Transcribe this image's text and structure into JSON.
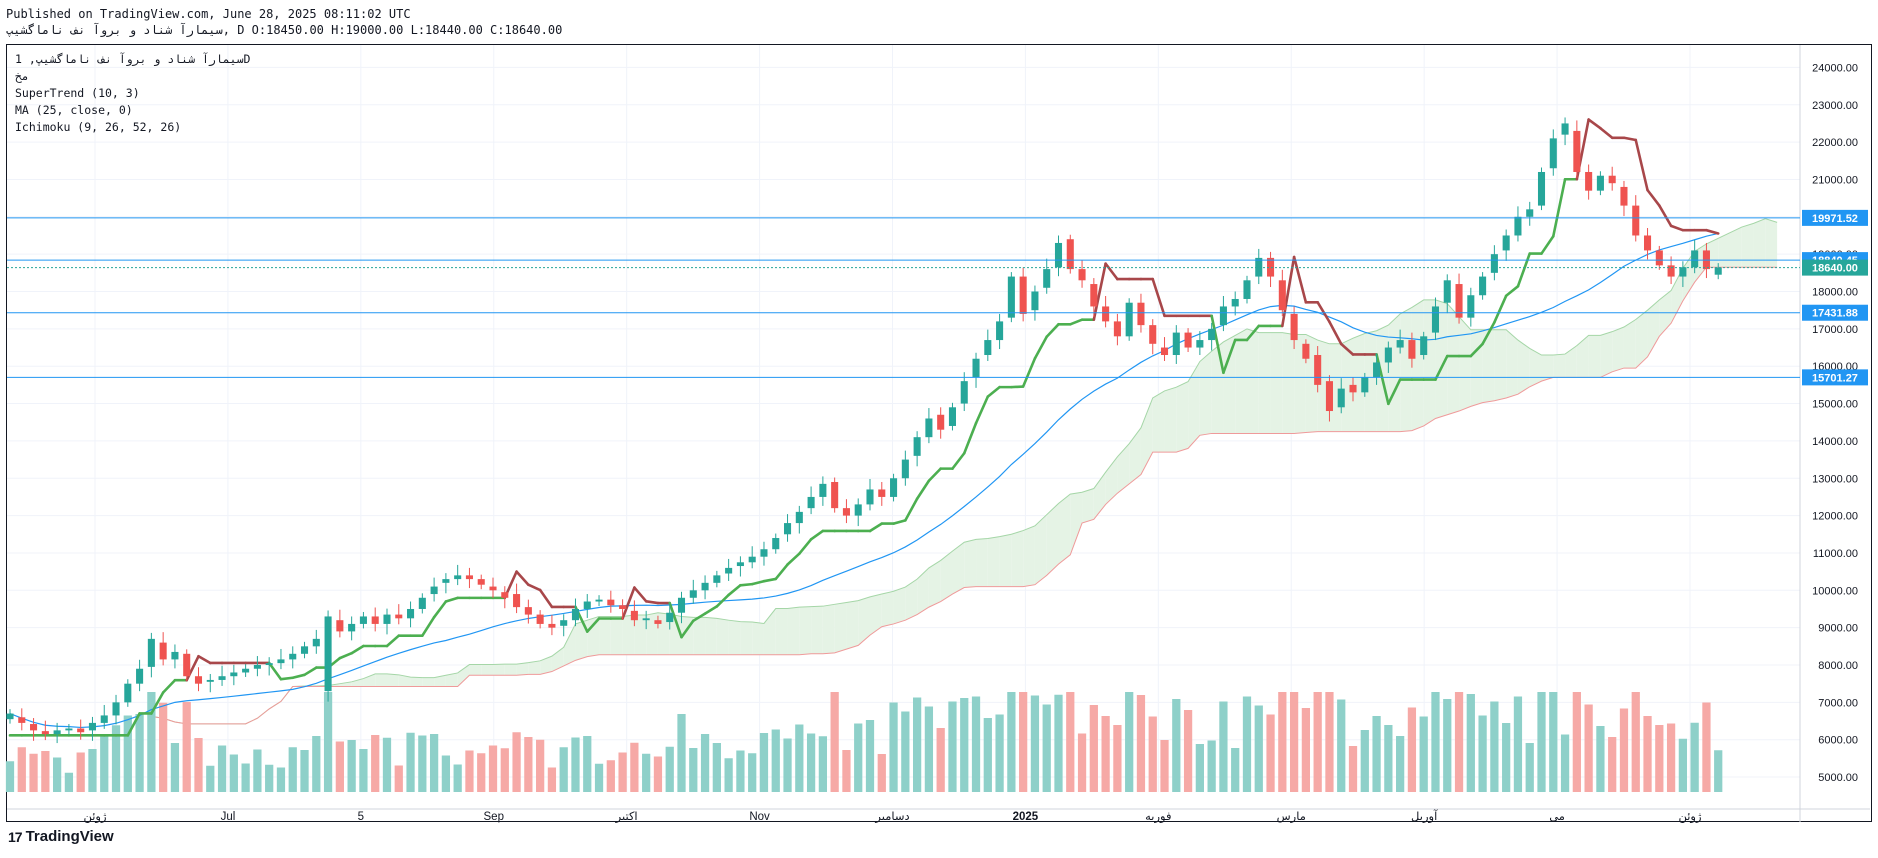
{
  "header": {
    "line1": "Published on TradingView.com, June 28, 2025 08:11:02 UTC",
    "line2": "سیمارآ شناد و بروآ نف ناماگشیپ, D O:18450.00 H:19000.00 L:18440.00 C:18640.00"
  },
  "legend": {
    "symbol": "سیمارآ شناد و بروآ نف ناماگشیپ, 1D",
    "symbol_sub": "مخ",
    "ind1": "SuperTrend (10, 3)",
    "ind2": "MA (25, close, 0)",
    "ind3": "Ichimoku (9, 26, 52, 26)"
  },
  "branding": {
    "logo_text": "TradingView",
    "logo_mark": "17"
  },
  "colors": {
    "up": "#26a69a",
    "down": "#ef5350",
    "vol_up": "#8ed0c9",
    "vol_down": "#f6a9a6",
    "supertrend_up": "#4caf50",
    "supertrend_down": "#a8474a",
    "ma": "#2196f3",
    "hline": "#2196f3",
    "cloud_up": "#e5f3e5",
    "cloud_down": "#fbe3e3",
    "span_a": "#a5d6a7",
    "span_b": "#ef9a9a"
  },
  "chart_data": {
    "type": "candlestick",
    "ylim": [
      4600,
      24600
    ],
    "y_ticks": [
      "5000.00",
      "6000.00",
      "7000.00",
      "8000.00",
      "9000.00",
      "10000.00",
      "11000.00",
      "12000.00",
      "13000.00",
      "14000.00",
      "15000.00",
      "16000.00",
      "17000.00",
      "18000.00",
      "19000.00",
      "20000.00",
      "21000.00",
      "22000.00",
      "23000.00",
      "24000.00"
    ],
    "x_labels": [
      "ژوئن",
      "Jul",
      "5",
      "Sep",
      "اکتبر",
      "Nov",
      "دسامبر",
      "2025",
      "فوریه",
      "مارس",
      "آوریل",
      "می",
      "ژوئن"
    ],
    "horizontal_levels": [
      {
        "value": 19971.52,
        "label": "19971.52",
        "color": "#2196f3"
      },
      {
        "value": 18840.45,
        "label": "18840.45",
        "color": "#2196f3"
      },
      {
        "value": 17431.88,
        "label": "17431.88",
        "color": "#2196f3"
      },
      {
        "value": 15701.27,
        "label": "15701.27",
        "color": "#2196f3"
      },
      {
        "value": 18640.0,
        "label": "18640.00",
        "color": "#26a69a",
        "dotted": true
      }
    ],
    "last_close": 18640.0,
    "price_path": [
      [
        6550,
        6700
      ],
      [
        6600,
        6450
      ],
      [
        6420,
        6250
      ],
      [
        6230,
        6150
      ],
      [
        6150,
        6250
      ],
      [
        6250,
        6300
      ],
      [
        6300,
        6200
      ],
      [
        6250,
        6450
      ],
      [
        6450,
        6650
      ],
      [
        6650,
        7000
      ],
      [
        7000,
        7500
      ],
      [
        7500,
        7900
      ],
      [
        7950,
        8700
      ],
      [
        8600,
        8150
      ],
      [
        8150,
        8350
      ],
      [
        8300,
        7700
      ],
      [
        7700,
        7500
      ],
      [
        7550,
        7600
      ],
      [
        7600,
        7700
      ],
      [
        7700,
        7800
      ],
      [
        7800,
        7900
      ],
      [
        7900,
        8000
      ],
      [
        8000,
        8050
      ],
      [
        8050,
        8150
      ],
      [
        8150,
        8300
      ],
      [
        8300,
        8500
      ],
      [
        8500,
        8700
      ],
      [
        7300,
        9300
      ],
      [
        9200,
        8900
      ],
      [
        8900,
        9100
      ],
      [
        9100,
        9300
      ],
      [
        9300,
        9100
      ],
      [
        9100,
        9350
      ],
      [
        9350,
        9250
      ],
      [
        9250,
        9500
      ],
      [
        9500,
        9800
      ],
      [
        9900,
        10100
      ],
      [
        10200,
        10300
      ],
      [
        10300,
        10400
      ],
      [
        10400,
        10300
      ],
      [
        10300,
        10150
      ],
      [
        10100,
        10000
      ],
      [
        9950,
        9800
      ],
      [
        9900,
        9550
      ],
      [
        9550,
        9350
      ],
      [
        9350,
        9100
      ],
      [
        9100,
        9000
      ],
      [
        9050,
        9200
      ],
      [
        9200,
        9500
      ],
      [
        9500,
        9700
      ],
      [
        9700,
        9750
      ],
      [
        9750,
        9600
      ],
      [
        9600,
        9500
      ],
      [
        9450,
        9200
      ],
      [
        9200,
        9250
      ],
      [
        9200,
        9100
      ],
      [
        9150,
        9400
      ],
      [
        9400,
        9800
      ],
      [
        9800,
        10000
      ],
      [
        10000,
        10200
      ],
      [
        10200,
        10400
      ],
      [
        10450,
        10600
      ],
      [
        10650,
        10750
      ],
      [
        10750,
        10900
      ],
      [
        10900,
        11100
      ],
      [
        11100,
        11400
      ],
      [
        11500,
        11800
      ],
      [
        11800,
        12100
      ],
      [
        12200,
        12500
      ],
      [
        12500,
        12850
      ],
      [
        12900,
        12200
      ],
      [
        12200,
        12000
      ],
      [
        12000,
        12300
      ],
      [
        12300,
        12700
      ],
      [
        12700,
        12500
      ],
      [
        12500,
        13000
      ],
      [
        13000,
        13500
      ],
      [
        13600,
        14100
      ],
      [
        14100,
        14600
      ],
      [
        14700,
        14300
      ],
      [
        14400,
        14900
      ],
      [
        15000,
        15600
      ],
      [
        15700,
        16200
      ],
      [
        16300,
        16700
      ],
      [
        16700,
        17200
      ],
      [
        17300,
        18400
      ],
      [
        18400,
        17400
      ],
      [
        17500,
        18000
      ],
      [
        18100,
        18600
      ],
      [
        18650,
        19300
      ],
      [
        19400,
        18600
      ],
      [
        18600,
        18300
      ],
      [
        18200,
        17600
      ],
      [
        17600,
        17200
      ],
      [
        17200,
        16800
      ],
      [
        16800,
        17700
      ],
      [
        17700,
        17100
      ],
      [
        17100,
        16600
      ],
      [
        16500,
        16300
      ],
      [
        16300,
        16900
      ],
      [
        16900,
        16500
      ],
      [
        16500,
        16700
      ],
      [
        16700,
        17000
      ],
      [
        17100,
        17600
      ],
      [
        17600,
        17800
      ],
      [
        17800,
        18300
      ],
      [
        18400,
        18900
      ],
      [
        18900,
        18400
      ],
      [
        18300,
        17500
      ],
      [
        17400,
        16700
      ],
      [
        16600,
        16200
      ],
      [
        16300,
        15500
      ],
      [
        15600,
        14800
      ],
      [
        14900,
        15400
      ],
      [
        15500,
        15300
      ],
      [
        15300,
        15700
      ],
      [
        15700,
        16100
      ],
      [
        16100,
        16500
      ],
      [
        16500,
        16700
      ],
      [
        16700,
        16200
      ],
      [
        16300,
        16800
      ],
      [
        16900,
        17600
      ],
      [
        17700,
        18300
      ],
      [
        18200,
        17300
      ],
      [
        17300,
        17900
      ],
      [
        17900,
        18400
      ],
      [
        18500,
        19000
      ],
      [
        19100,
        19500
      ],
      [
        19500,
        20000
      ],
      [
        20000,
        20200
      ],
      [
        20300,
        21200
      ],
      [
        21300,
        22100
      ],
      [
        22200,
        22500
      ],
      [
        22300,
        21200
      ],
      [
        21200,
        20700
      ],
      [
        20700,
        21100
      ],
      [
        21100,
        20900
      ],
      [
        20800,
        20300
      ],
      [
        20300,
        19500
      ],
      [
        19500,
        19100
      ],
      [
        19100,
        18700
      ],
      [
        18700,
        18400
      ],
      [
        18400,
        18650
      ],
      [
        18650,
        19100
      ],
      [
        19100,
        18600
      ],
      [
        18450,
        18640
      ]
    ]
  }
}
